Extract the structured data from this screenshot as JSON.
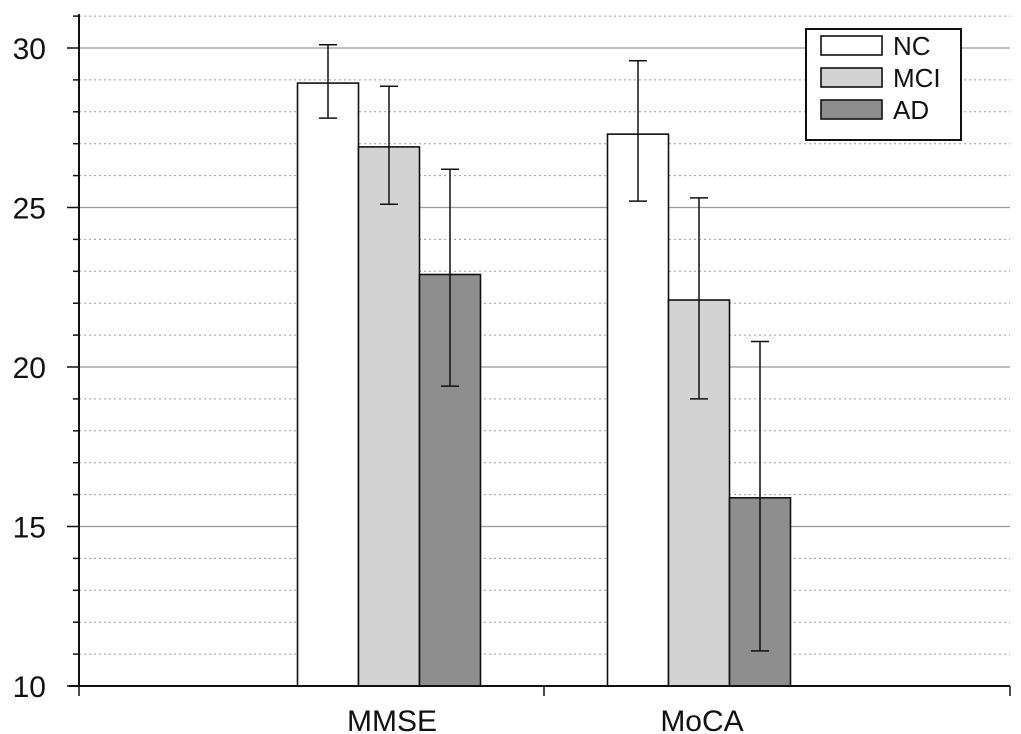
{
  "chart_data": {
    "type": "bar",
    "title": "",
    "xlabel": "",
    "ylabel": "",
    "categories": [
      "MMSE",
      "MoCA"
    ],
    "ylim": [
      10,
      31
    ],
    "yticks": [
      10,
      15,
      20,
      25,
      30
    ],
    "grid": true,
    "legend_position": "top-right",
    "series": [
      {
        "name": "NC",
        "color": "#ffffff",
        "values": [
          28.9,
          27.3
        ],
        "err_low": [
          27.8,
          25.2
        ],
        "err_high": [
          30.1,
          29.6
        ]
      },
      {
        "name": "MCI",
        "color": "#d3d3d3",
        "values": [
          26.9,
          22.1
        ],
        "err_low": [
          25.1,
          19.0
        ],
        "err_high": [
          28.8,
          25.3
        ]
      },
      {
        "name": "AD",
        "color": "#8e8e8e",
        "values": [
          22.9,
          15.9
        ],
        "err_low": [
          19.4,
          11.1
        ],
        "err_high": [
          26.2,
          20.8
        ]
      }
    ]
  }
}
